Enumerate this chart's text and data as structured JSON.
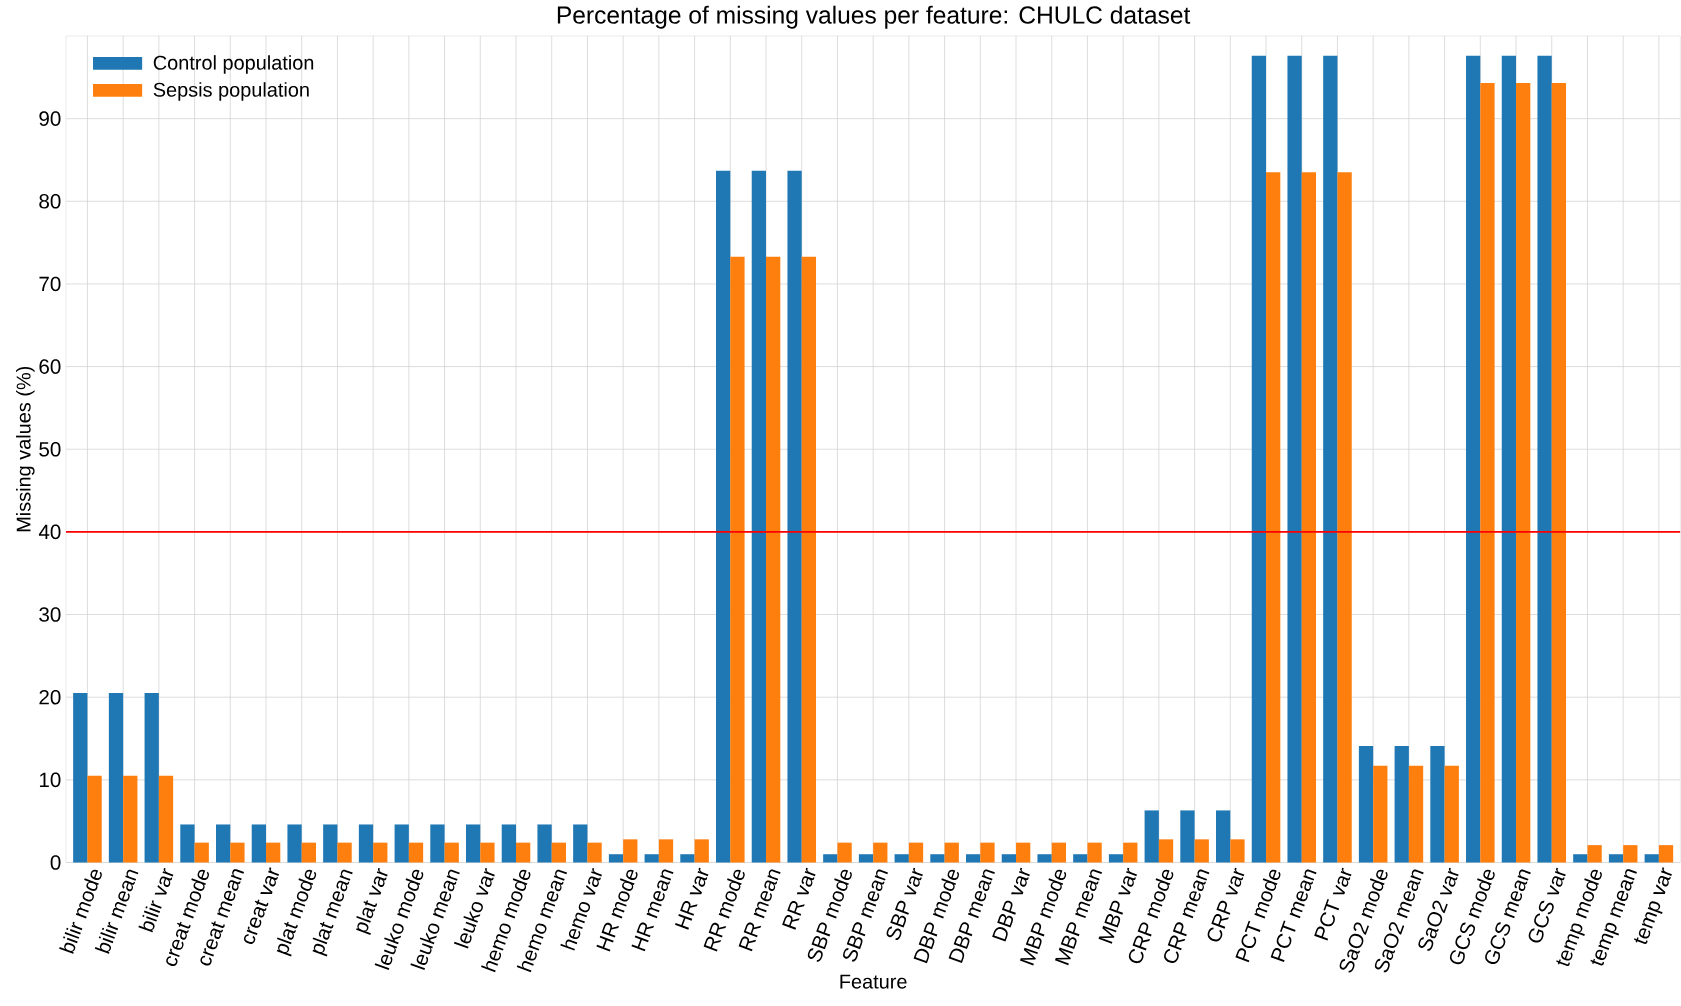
{
  "chart_data": {
    "type": "bar",
    "title": "Percentage of missing values per feature: CHULC dataset",
    "xlabel": "Feature",
    "ylabel": "Missing values (%)",
    "categories": [
      "bilir mode",
      "bilir mean",
      "bilir var",
      "creat mode",
      "creat mean",
      "creat var",
      "plat mode",
      "plat mean",
      "plat var",
      "leuko mode",
      "leuko mean",
      "leuko var",
      "hemo mode",
      "hemo mean",
      "hemo var",
      "HR mode",
      "HR mean",
      "HR var",
      "RR mode",
      "RR mean",
      "RR var",
      "SBP mode",
      "SBP mean",
      "SBP var",
      "DBP mode",
      "DBP mean",
      "DBP var",
      "MBP mode",
      "MBP mean",
      "MBP var",
      "CRP mode",
      "CRP mean",
      "CRP var",
      "PCT mode",
      "PCT mean",
      "PCT var",
      "SaO2 mode",
      "SaO2 mean",
      "SaO2 var",
      "GCS mode",
      "GCS mean",
      "GCS var",
      "temp mode",
      "temp mean",
      "temp var"
    ],
    "series": [
      {
        "name": "Control population",
        "color": "#1f77b4",
        "values": [
          20.5,
          20.5,
          20.5,
          4.6,
          4.6,
          4.6,
          4.6,
          4.6,
          4.6,
          4.6,
          4.6,
          4.6,
          4.6,
          4.6,
          4.6,
          1.0,
          1.0,
          1.0,
          83.7,
          83.7,
          83.7,
          1.0,
          1.0,
          1.0,
          1.0,
          1.0,
          1.0,
          1.0,
          1.0,
          1.0,
          6.3,
          6.3,
          6.3,
          97.6,
          97.6,
          97.6,
          14.1,
          14.1,
          14.1,
          97.6,
          97.6,
          97.6,
          1.0,
          1.0,
          1.0
        ]
      },
      {
        "name": "Sepsis population",
        "color": "#ff7f0e",
        "values": [
          10.5,
          10.5,
          10.5,
          2.4,
          2.4,
          2.4,
          2.4,
          2.4,
          2.4,
          2.4,
          2.4,
          2.4,
          2.4,
          2.4,
          2.4,
          2.8,
          2.8,
          2.8,
          73.3,
          73.3,
          73.3,
          2.4,
          2.4,
          2.4,
          2.4,
          2.4,
          2.4,
          2.4,
          2.4,
          2.4,
          2.8,
          2.8,
          2.8,
          83.5,
          83.5,
          83.5,
          11.7,
          11.7,
          11.7,
          94.3,
          94.3,
          94.3,
          2.1,
          2.1,
          2.1
        ]
      }
    ],
    "ylim": [
      0,
      100
    ],
    "yticks": [
      0,
      10,
      20,
      30,
      40,
      50,
      60,
      70,
      80,
      90
    ],
    "ref_lines": [
      {
        "axis": "y",
        "value": 40,
        "color": "#ff0000"
      }
    ],
    "grid": true,
    "legend": "top left"
  }
}
